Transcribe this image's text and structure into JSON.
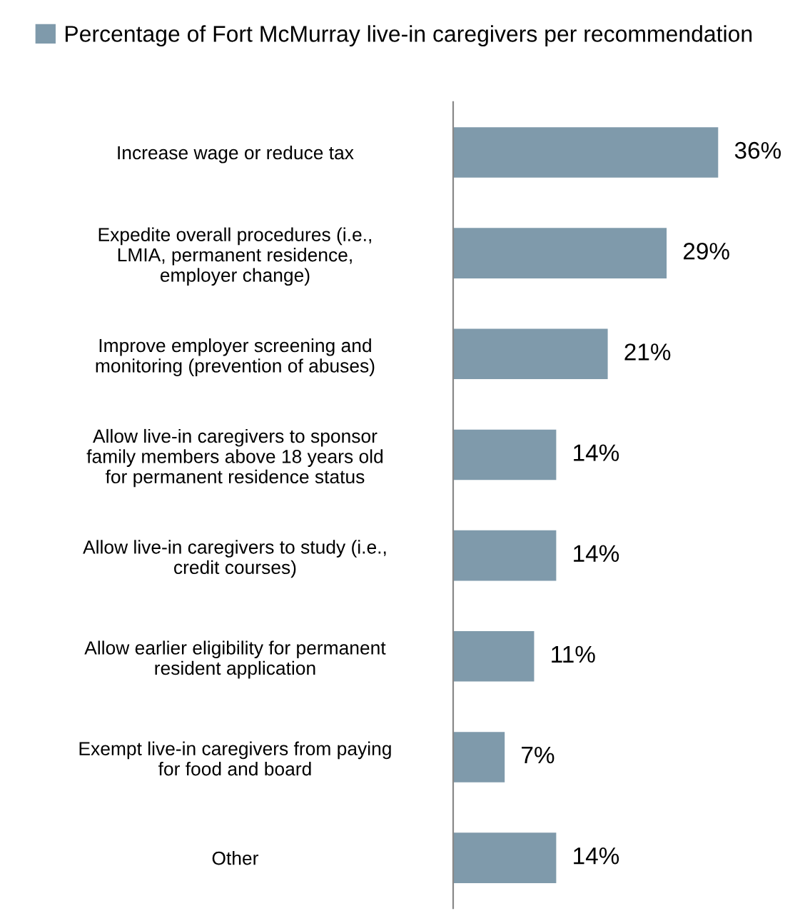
{
  "chart_data": {
    "type": "bar",
    "orientation": "horizontal",
    "legend": "top",
    "categories": [
      "Increase wage or reduce tax",
      "Expedite overall procedures (i.e.,\nLMIA, permanent residence,\nemployer change)",
      "Improve employer screening and\nmonitoring (prevention of abuses)",
      "Allow live-in caregivers to sponsor\nfamily members above 18 years old\nfor permanent residence status",
      "Allow live-in caregivers to study (i.e.,\ncredit courses)",
      "Allow earlier eligibility for permanent\nresident application",
      "Exempt live-in caregivers from paying\nfor food and board",
      "Other"
    ],
    "series": [
      {
        "name": "Percentage of Fort McMurray live-in caregivers per recommendation",
        "color": "#7f9aab",
        "values": [
          36,
          29,
          21,
          14,
          14,
          11,
          7,
          14
        ],
        "value_labels": [
          "36%",
          "29%",
          "21%",
          "14%",
          "14%",
          "11%",
          "7%",
          "14%"
        ]
      }
    ]
  }
}
